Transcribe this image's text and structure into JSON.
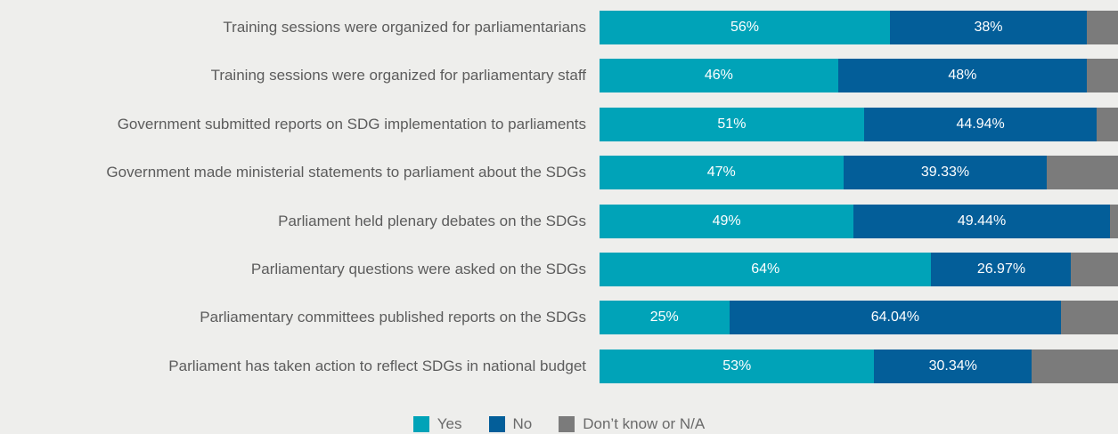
{
  "chart_data": {
    "type": "bar",
    "orientation": "horizontal",
    "stacked": true,
    "normalized": true,
    "categories": [
      "Training sessions were organized for parliamentarians",
      "Training sessions were organized for parliamentary staff",
      "Government submitted reports on SDG implementation to parliaments",
      "Government made ministerial statements to parliament about the SDGs",
      "Parliament held plenary debates on the SDGs",
      "Parliamentary questions were asked on the SDGs",
      "Parliamentary committees published reports on the SDGs",
      "Parliament has taken action to reflect SDGs in national budget"
    ],
    "series": [
      {
        "name": "Yes",
        "color": "#00a3b8",
        "values": [
          56,
          46,
          51,
          47,
          49,
          64,
          25,
          53
        ],
        "labels": [
          "56%",
          "46%",
          "51%",
          "47%",
          "49%",
          "64%",
          "25%",
          "53%"
        ]
      },
      {
        "name": "No",
        "color": "#035e99",
        "values": [
          38,
          48,
          44.94,
          39.33,
          49.44,
          26.97,
          64.04,
          30.34
        ],
        "labels": [
          "38%",
          "48%",
          "44.94%",
          "39.33%",
          "49.44%",
          "26.97%",
          "64.04%",
          "30.34%"
        ]
      },
      {
        "name": "Don’t know or N/A",
        "color": "#7b7b7b",
        "values": [
          6,
          6,
          4.06,
          13.67,
          1.56,
          9.03,
          10.96,
          16.66
        ]
      }
    ],
    "xlim": [
      0,
      100
    ],
    "grid": false,
    "legend_position": "bottom-center"
  }
}
